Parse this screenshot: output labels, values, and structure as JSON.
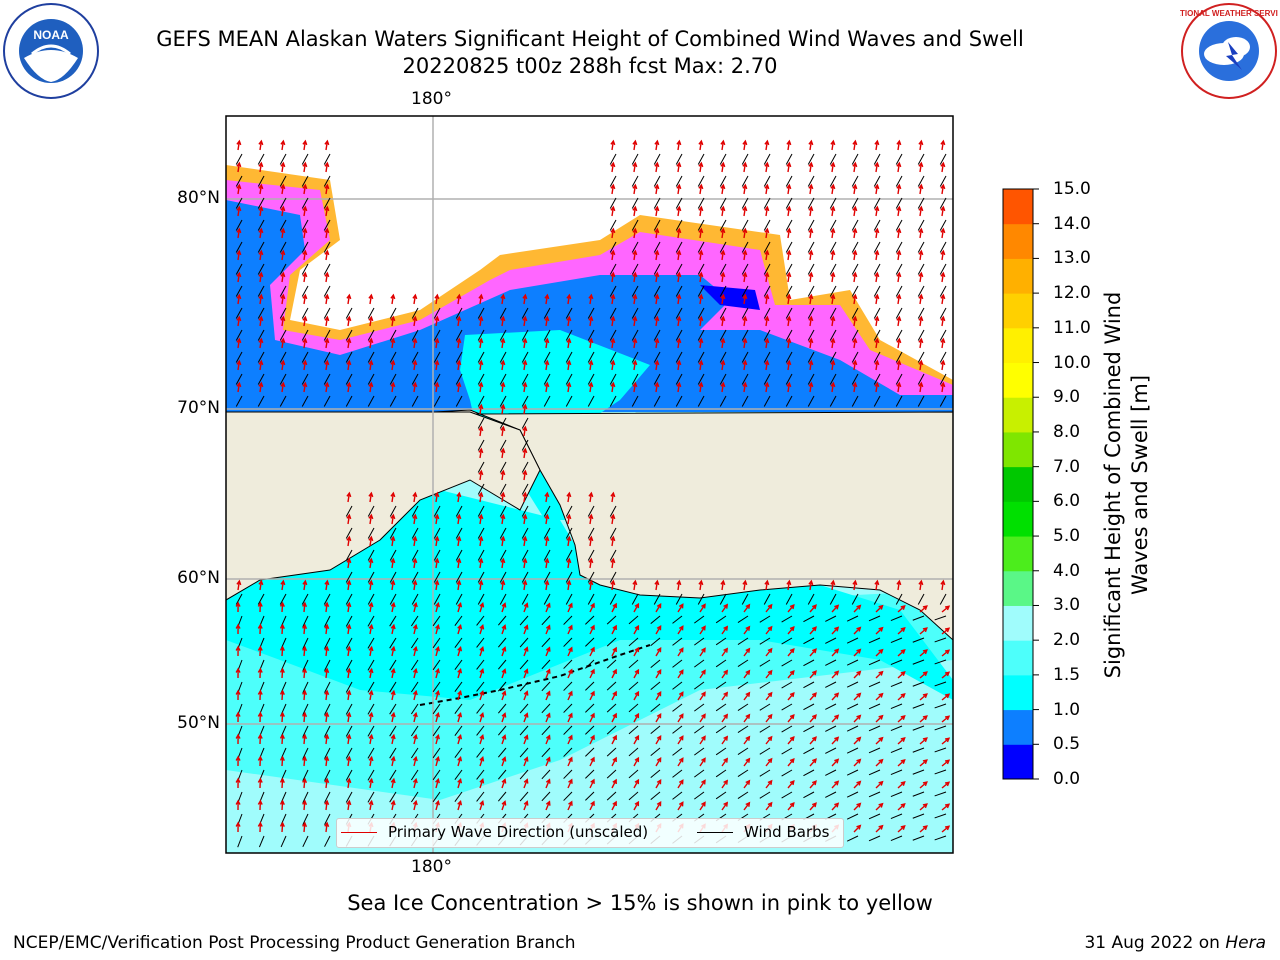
{
  "header": {
    "title_line1": "GEFS MEAN Alaskan Waters Significant Height of Combined Wind Waves and Swell",
    "title_line2": "20220825 t00z 288h fcst   Max: 2.70"
  },
  "logos": {
    "left": {
      "text": "NOAA",
      "icon": "noaa-logo"
    },
    "right": {
      "text": "NATIONAL WEATHER SERVICE",
      "icon": "nws-logo"
    }
  },
  "map": {
    "lon_label_top": "180°",
    "lon_label_bottom": "180°",
    "lat_labels": [
      "80°N",
      "70°N",
      "60°N",
      "50°N"
    ],
    "legend": {
      "wave_label": "Primary Wave Direction (unscaled)",
      "wind_label": "Wind Barbs",
      "wave_color": "#e00000",
      "wind_color": "#000000"
    },
    "colors": {
      "land": "#efecdc",
      "ice_pink": "#ff66ff",
      "ice_orange": "#ffb833",
      "ice_yellow": "#ffdf33",
      "wave_blue": "#0000ff",
      "wave_mid": "#0d7fff",
      "wave_cyan": "#00ffff",
      "wave_light": "#a0fcfc"
    }
  },
  "colorbar": {
    "label": "Significant Height of Combined Wind Waves and Swell [m]",
    "ticks": [
      "0.0",
      "0.5",
      "1.0",
      "1.5",
      "2.0",
      "3.0",
      "4.0",
      "5.0",
      "6.0",
      "7.0",
      "8.0",
      "9.0",
      "10.0",
      "11.0",
      "12.0",
      "13.0",
      "14.0",
      "15.0"
    ],
    "colors": [
      "#0000ff",
      "#0d7fff",
      "#00ffff",
      "#4dfffb",
      "#a0fcfc",
      "#5af787",
      "#4ced1c",
      "#00e000",
      "#00c800",
      "#7fe600",
      "#c8f000",
      "#ffff00",
      "#fff000",
      "#ffd000",
      "#ffb000",
      "#ff8800",
      "#ff5500",
      "#ff2200",
      "#ff0000"
    ]
  },
  "footer": {
    "note": "Sea Ice Concentration > 15% is shown in pink to yellow",
    "credit": "NCEP/EMC/Verification Post Processing Product Generation Branch",
    "date": "31 Aug 2022 on",
    "host": "Hera"
  }
}
